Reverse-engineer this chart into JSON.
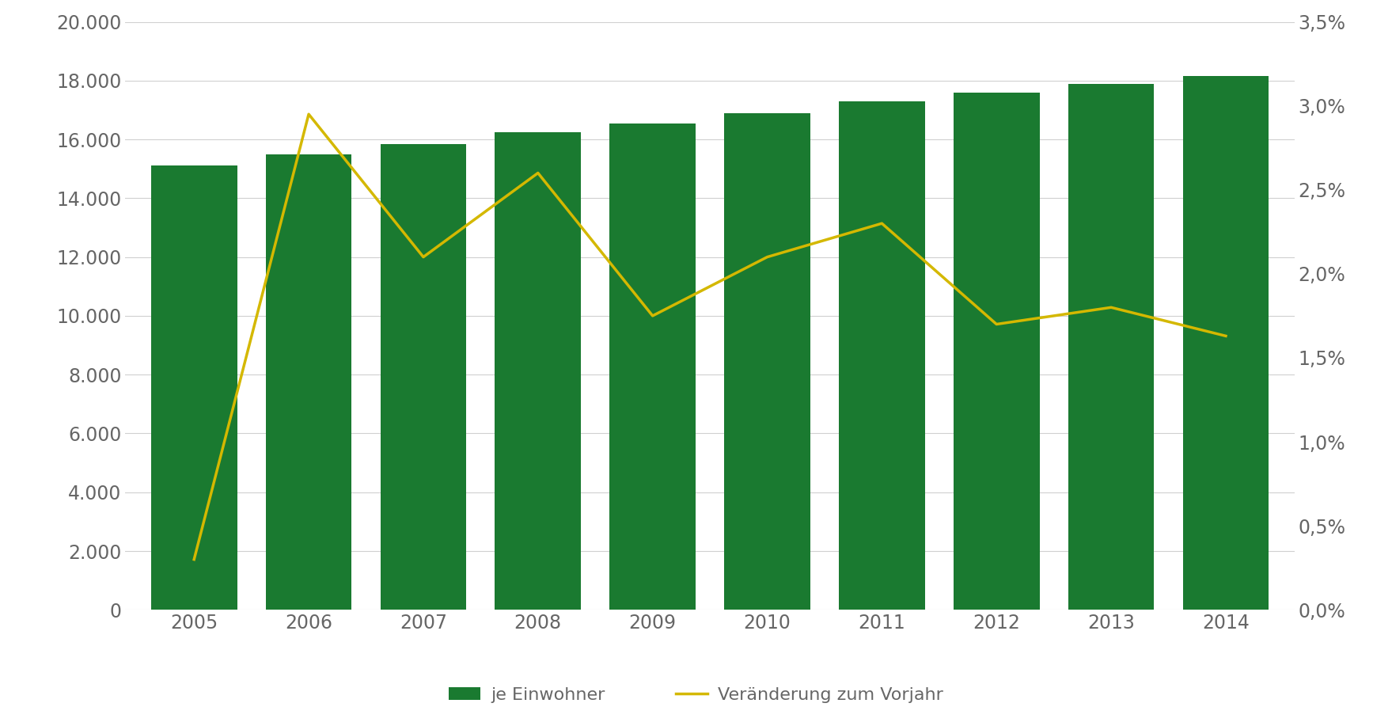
{
  "years": [
    2005,
    2006,
    2007,
    2008,
    2009,
    2010,
    2011,
    2012,
    2013,
    2014
  ],
  "bar_values": [
    15100,
    15500,
    15850,
    16250,
    16550,
    16900,
    17300,
    17600,
    17900,
    18150
  ],
  "line_values": [
    0.003,
    0.0295,
    0.021,
    0.026,
    0.0175,
    0.021,
    0.023,
    0.017,
    0.018,
    0.0163
  ],
  "bar_color": "#1a7a30",
  "line_color": "#d4b800",
  "bar_label": "je Einwohner",
  "line_label": "Veränderung zum Vorjahr",
  "ylim_left": [
    0,
    20000
  ],
  "ylim_right": [
    0,
    0.035
  ],
  "yticks_left": [
    0,
    2000,
    4000,
    6000,
    8000,
    10000,
    12000,
    14000,
    16000,
    18000,
    20000
  ],
  "yticks_right": [
    0.0,
    0.005,
    0.01,
    0.015,
    0.02,
    0.025,
    0.03,
    0.035
  ],
  "background_color": "#ffffff",
  "grid_color": "#d0d0d0",
  "tick_label_color": "#666666",
  "font_size": 17,
  "legend_font_size": 16,
  "bar_width": 0.75
}
